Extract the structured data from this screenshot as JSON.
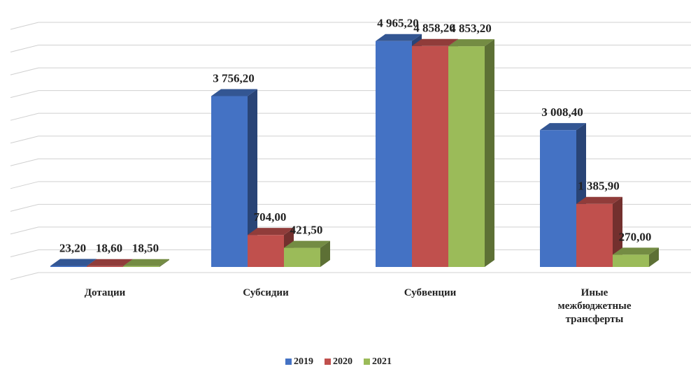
{
  "chart_data": {
    "type": "bar3d",
    "categories": [
      "Дотации",
      "Субсидии",
      "Субвенции",
      "Иные межбюджетные трансферты"
    ],
    "series": [
      {
        "name": "2019",
        "color": "#4472c4",
        "values": [
          23.2,
          3756.2,
          4965.2,
          3008.4
        ],
        "value_labels": [
          "23,20",
          "3 756,20",
          "4 965,20",
          "3 008,40"
        ]
      },
      {
        "name": "2020",
        "color": "#c0504d",
        "values": [
          18.6,
          704,
          4858.2,
          1385.9
        ],
        "value_labels": [
          "18,60",
          "704,00",
          "4 858,20",
          "1 385,90"
        ]
      },
      {
        "name": "2021",
        "color": "#9bbb59",
        "values": [
          18.5,
          421.5,
          4853.2,
          270
        ],
        "value_labels": [
          "18,50",
          "421,50",
          "4 853,20",
          "270,00"
        ]
      }
    ],
    "ylim": [
      0,
      5500
    ],
    "yticks": [
      0,
      500,
      1000,
      1500,
      2000,
      2500,
      3000,
      3500,
      4000,
      4500,
      5000,
      5500
    ],
    "grid": true,
    "legend": "bottom"
  }
}
